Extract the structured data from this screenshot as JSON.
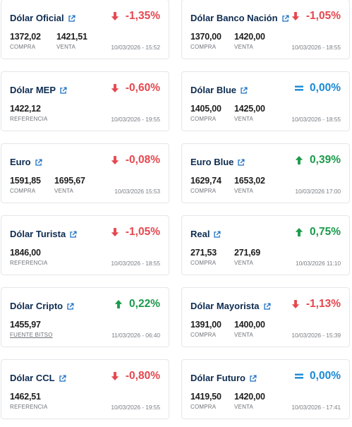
{
  "colors": {
    "down": "#e5474e",
    "up": "#1a9a4b",
    "flat": "#1a8ad6",
    "title": "#0c2b50"
  },
  "cards": [
    {
      "title": "Dólar Oficial",
      "change": "-1,35%",
      "direction": "down",
      "icon": "arrow-down-icon",
      "values": [
        {
          "value": "1372,02",
          "label": "COMPRA"
        },
        {
          "value": "1421,51",
          "label": "VENTA"
        }
      ],
      "timestamp": "10/03/2026 - 15:52"
    },
    {
      "title": "Dólar Banco Nación",
      "change": "-1,05%",
      "direction": "down",
      "icon": "arrow-down-icon",
      "values": [
        {
          "value": "1370,00",
          "label": "COMPRA"
        },
        {
          "value": "1420,00",
          "label": "VENTA"
        }
      ],
      "timestamp": "10/03/2026 - 18:55"
    },
    {
      "title": "Dólar MEP",
      "change": "-0,60%",
      "direction": "down",
      "icon": "arrow-down-icon",
      "values": [
        {
          "value": "1422,12",
          "label": "REFERENCIA"
        }
      ],
      "timestamp": "10/03/2026 - 19:55"
    },
    {
      "title": "Dólar Blue",
      "change": "0,00%",
      "direction": "flat",
      "icon": "equals-icon",
      "values": [
        {
          "value": "1405,00",
          "label": "COMPRA"
        },
        {
          "value": "1425,00",
          "label": "VENTA"
        }
      ],
      "timestamp": "10/03/2026 - 18:55"
    },
    {
      "title": "Euro",
      "change": "-0,08%",
      "direction": "down",
      "icon": "arrow-down-icon",
      "values": [
        {
          "value": "1591,85",
          "label": "COMPRA"
        },
        {
          "value": "1695,67",
          "label": "VENTA"
        }
      ],
      "timestamp": "10/03/2026 15:53"
    },
    {
      "title": "Euro Blue",
      "change": "0,39%",
      "direction": "up",
      "icon": "arrow-up-icon",
      "values": [
        {
          "value": "1629,74",
          "label": "COMPRA"
        },
        {
          "value": "1653,02",
          "label": "VENTA"
        }
      ],
      "timestamp": "10/03/2026 17:00"
    },
    {
      "title": "Dólar Turista",
      "change": "-1,05%",
      "direction": "down",
      "icon": "arrow-down-icon",
      "values": [
        {
          "value": "1846,00",
          "label": "REFERENCIA"
        }
      ],
      "timestamp": "10/03/2026 - 18:55"
    },
    {
      "title": "Real",
      "change": "0,75%",
      "direction": "up",
      "icon": "arrow-up-icon",
      "values": [
        {
          "value": "271,53",
          "label": "COMPRA"
        },
        {
          "value": "271,69",
          "label": "VENTA"
        }
      ],
      "timestamp": "10/03/2026 11:10"
    },
    {
      "title": "Dólar Cripto",
      "change": "0,22%",
      "direction": "up",
      "icon": "arrow-up-icon",
      "values": [
        {
          "value": "1455,97",
          "label": "FUENTE BITSO",
          "underline": true
        }
      ],
      "timestamp": "11/03/2026 - 06:40"
    },
    {
      "title": "Dólar Mayorista",
      "change": "-1,13%",
      "direction": "down",
      "icon": "arrow-down-icon",
      "values": [
        {
          "value": "1391,00",
          "label": "COMPRA"
        },
        {
          "value": "1400,00",
          "label": "VENTA"
        }
      ],
      "timestamp": "10/03/2026 - 15:39"
    },
    {
      "title": "Dólar CCL",
      "change": "-0,80%",
      "direction": "down",
      "icon": "arrow-down-icon",
      "values": [
        {
          "value": "1462,51",
          "label": "REFERENCIA"
        }
      ],
      "timestamp": "10/03/2026 - 19:55"
    },
    {
      "title": "Dólar Futuro",
      "change": "0,00%",
      "direction": "flat",
      "icon": "equals-icon",
      "values": [
        {
          "value": "1419,50",
          "label": "COMPRA"
        },
        {
          "value": "1420,00",
          "label": "VENTA"
        }
      ],
      "timestamp": "10/03/2026 - 17:41"
    }
  ]
}
